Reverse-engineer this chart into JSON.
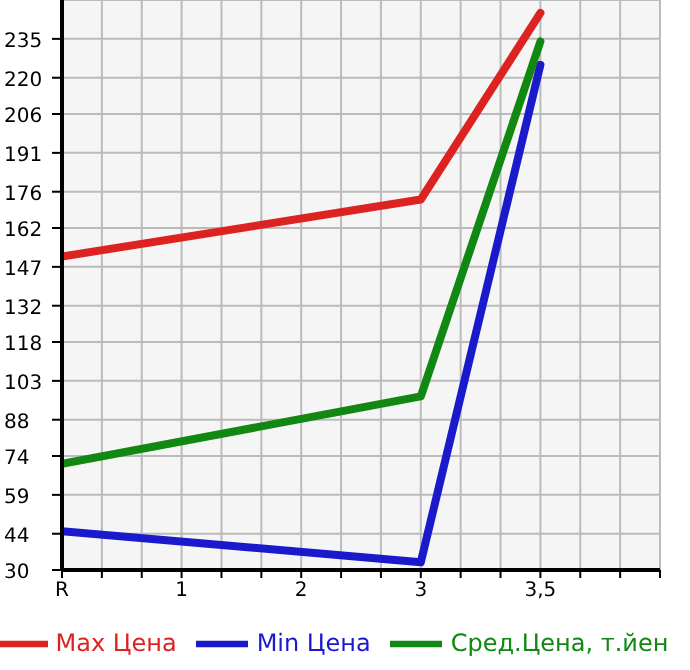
{
  "chart_data": {
    "type": "line",
    "categories": [
      "R",
      null,
      null,
      "1",
      null,
      null,
      "2",
      null,
      null,
      "3",
      null,
      null,
      "3,5",
      null,
      null,
      null
    ],
    "ylim": [
      30,
      250
    ],
    "yticks": [
      30,
      44,
      59,
      74,
      88,
      103,
      118,
      132,
      147,
      162,
      176,
      191,
      206,
      220,
      235
    ],
    "grid": true,
    "legend": "bottom",
    "marker": "none",
    "line_style": "solid",
    "series": [
      {
        "name": "Max Цена",
        "color": "#dd2222",
        "values": [
          151,
          null,
          null,
          null,
          null,
          null,
          null,
          null,
          null,
          173,
          null,
          null,
          245,
          null,
          null,
          null
        ]
      },
      {
        "name": "Min Цена",
        "color": "#1a1acc",
        "values": [
          45,
          null,
          null,
          null,
          null,
          null,
          null,
          null,
          null,
          33,
          null,
          null,
          225,
          null,
          null,
          null
        ]
      },
      {
        "name": "Сред.Цена, т.йен",
        "color": "#118811",
        "values": [
          71,
          null,
          null,
          null,
          null,
          null,
          null,
          null,
          null,
          97,
          null,
          null,
          234,
          null,
          null,
          null
        ]
      }
    ]
  }
}
